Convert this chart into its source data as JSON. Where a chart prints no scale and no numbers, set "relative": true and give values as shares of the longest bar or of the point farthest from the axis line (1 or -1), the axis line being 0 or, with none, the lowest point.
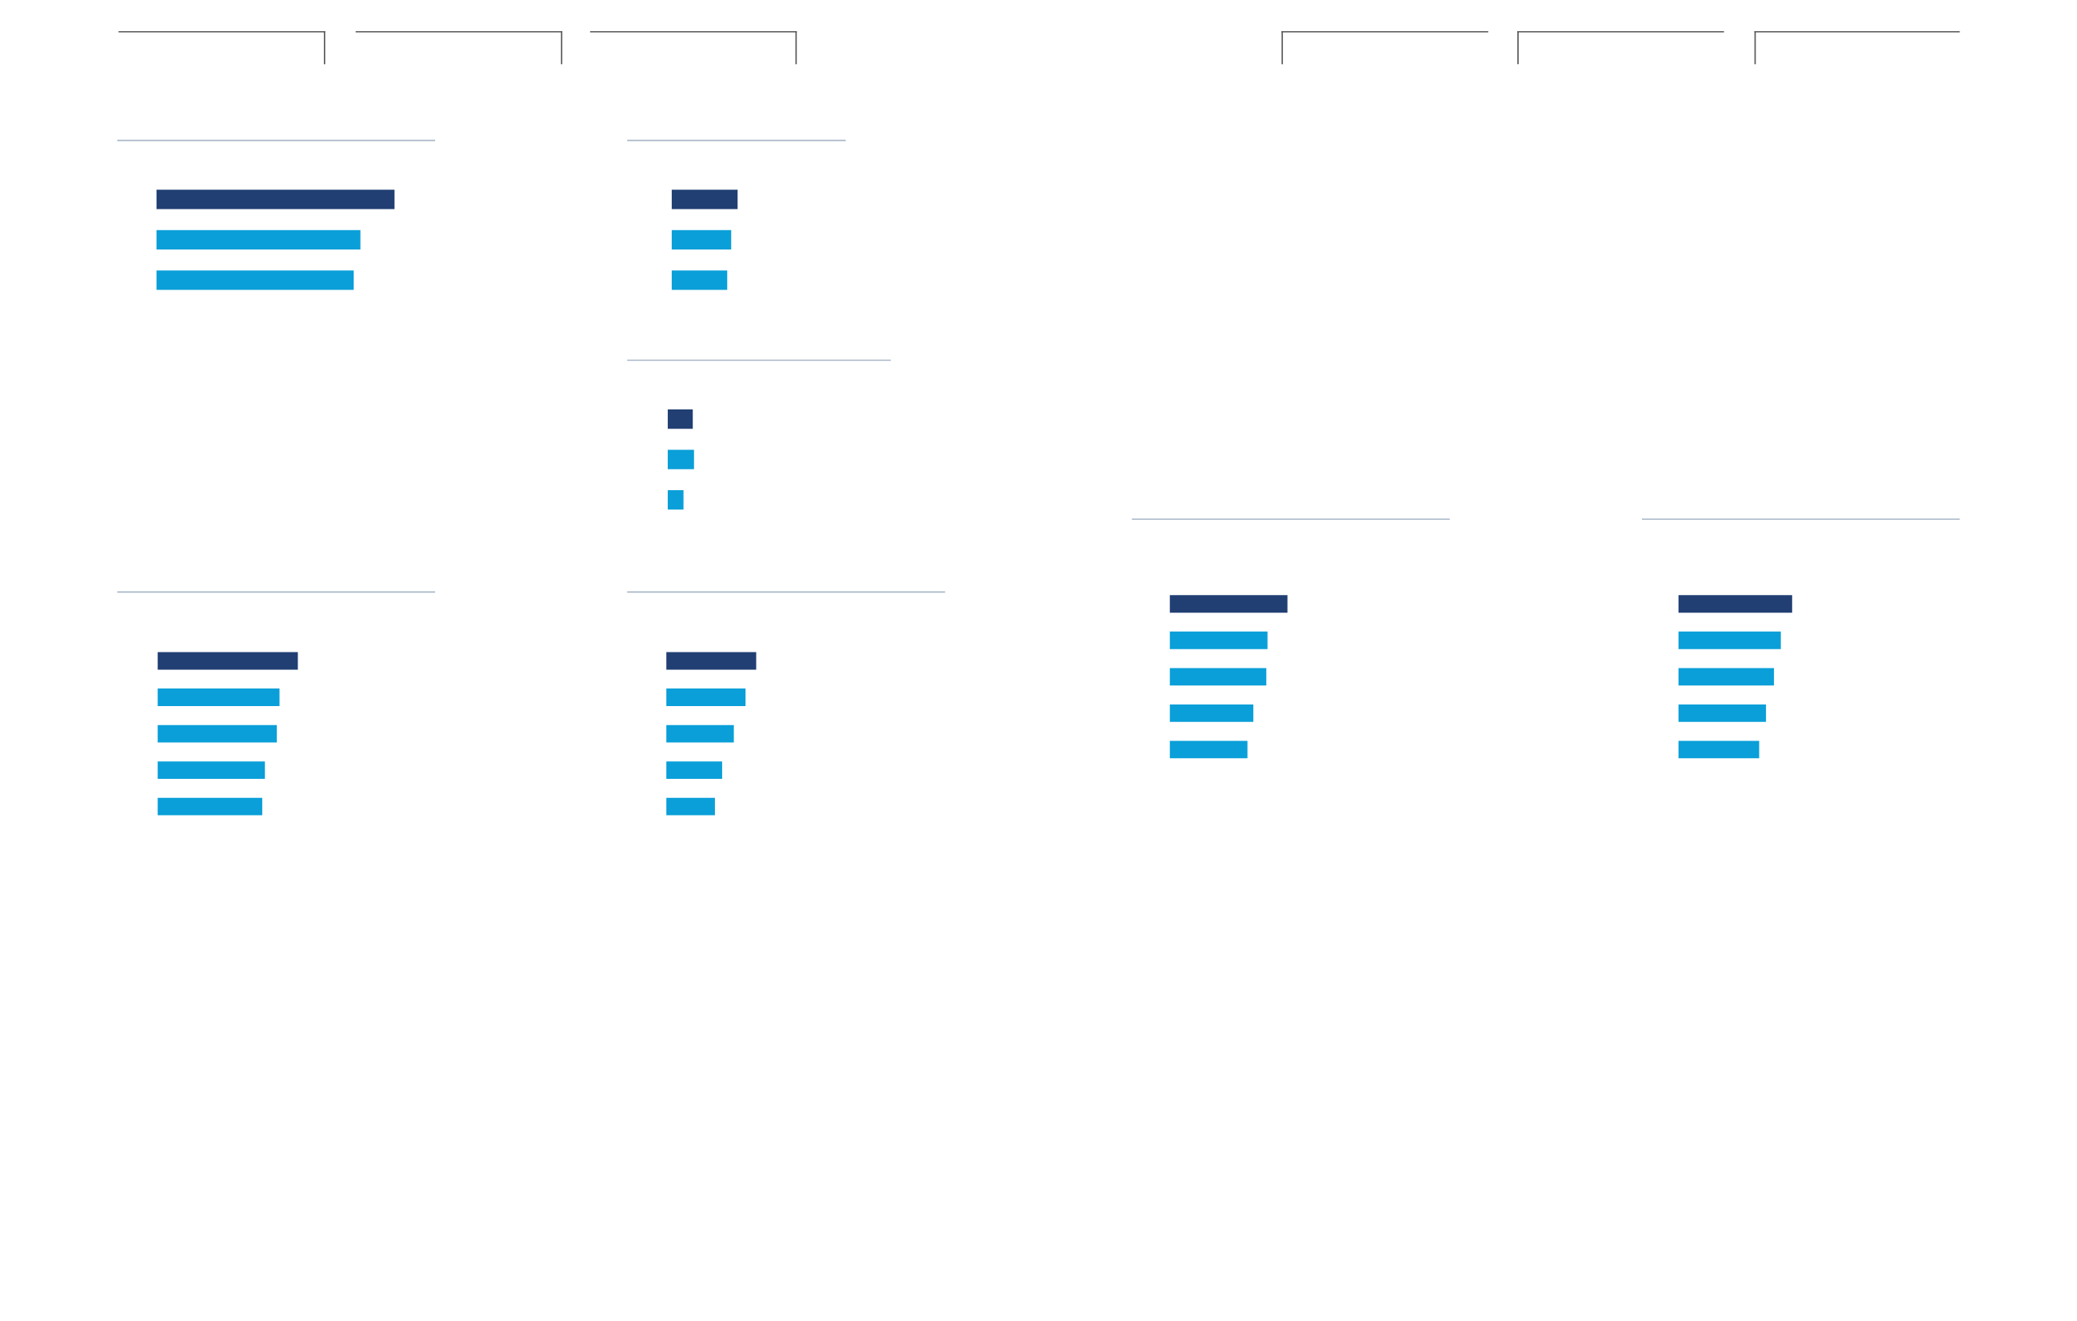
{
  "chart_data": [
    {
      "type": "bar",
      "orientation": "horizontal",
      "relative": true,
      "categories": [
        null,
        null,
        null
      ],
      "values": [
        1,
        0.856,
        0.828
      ],
      "colors": [
        "#213f73",
        "#0a9fd8",
        "#0a9fd8"
      ]
    },
    {
      "type": "bar",
      "orientation": "horizontal",
      "relative": true,
      "categories": [
        null,
        null,
        null
      ],
      "values": [
        1,
        0.9,
        0.84
      ],
      "colors": [
        "#213f73",
        "#0a9fd8",
        "#0a9fd8"
      ]
    },
    {
      "type": "bar",
      "orientation": "horizontal",
      "relative": true,
      "categories": [
        null,
        null,
        null
      ],
      "values": [
        0.95,
        1,
        0.6
      ],
      "colors": [
        "#213f73",
        "#0a9fd8",
        "#0a9fd8"
      ]
    },
    {
      "type": "bar",
      "orientation": "horizontal",
      "relative": true,
      "categories": [
        null,
        null,
        null,
        null,
        null
      ],
      "values": [
        1,
        0.868,
        0.849,
        0.764,
        0.745
      ],
      "colors": [
        "#213f73",
        "#0a9fd8",
        "#0a9fd8",
        "#0a9fd8",
        "#0a9fd8"
      ]
    },
    {
      "type": "bar",
      "orientation": "horizontal",
      "relative": true,
      "categories": [
        null,
        null,
        null,
        null,
        null
      ],
      "values": [
        1,
        0.88,
        0.75,
        0.62,
        0.54
      ],
      "colors": [
        "#213f73",
        "#0a9fd8",
        "#0a9fd8",
        "#0a9fd8",
        "#0a9fd8"
      ]
    },
    {
      "type": "bar",
      "orientation": "horizontal",
      "relative": true,
      "categories": [
        null,
        null,
        null,
        null,
        null
      ],
      "values": [
        1,
        0.83,
        0.82,
        0.71,
        0.66
      ],
      "colors": [
        "#213f73",
        "#0a9fd8",
        "#0a9fd8",
        "#0a9fd8",
        "#0a9fd8"
      ]
    },
    {
      "type": "bar",
      "orientation": "horizontal",
      "relative": true,
      "categories": [
        null,
        null,
        null,
        null,
        null
      ],
      "values": [
        1,
        0.9,
        0.84,
        0.77,
        0.71
      ],
      "colors": [
        "#213f73",
        "#0a9fd8",
        "#0a9fd8",
        "#0a9fd8",
        "#0a9fd8"
      ]
    }
  ]
}
